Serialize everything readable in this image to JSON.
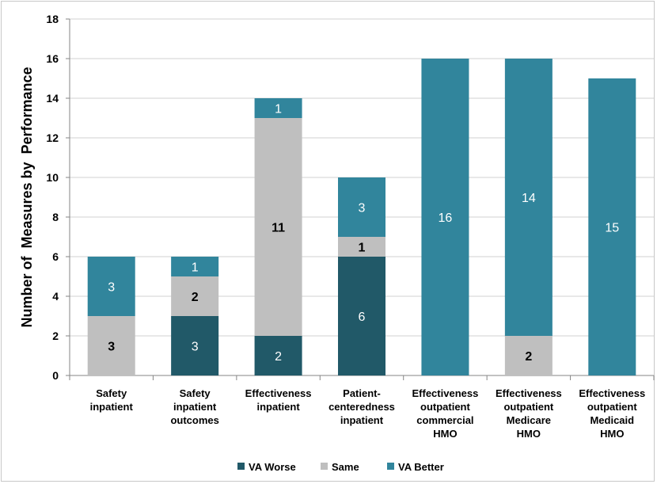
{
  "chart_data": {
    "type": "bar",
    "stacked": true,
    "title": "",
    "xlabel": "",
    "ylabel": "Number of  Measures by  Performance",
    "ylim": [
      0,
      18
    ],
    "yticks": [
      0,
      2,
      4,
      6,
      8,
      10,
      12,
      14,
      16,
      18
    ],
    "grid": true,
    "legend_position": "bottom",
    "categories": [
      [
        "Safety",
        "inpatient"
      ],
      [
        "Safety",
        "inpatient",
        "outcomes"
      ],
      [
        "Effectiveness",
        "inpatient"
      ],
      [
        "Patient-",
        "centeredness",
        "inpatient"
      ],
      [
        "Effectiveness",
        "outpatient",
        "commercial",
        "HMO"
      ],
      [
        "Effectiveness",
        "outpatient",
        "Medicare",
        "HMO"
      ],
      [
        "Effectiveness",
        "outpatient",
        "Medicaid",
        "HMO"
      ]
    ],
    "series": [
      {
        "name": "VA Worse",
        "color": "#215968",
        "label_style": "light",
        "values": [
          0,
          3,
          2,
          6,
          0,
          0,
          0
        ]
      },
      {
        "name": "Same",
        "color": "#bfbfbf",
        "label_style": "dark",
        "values": [
          3,
          2,
          11,
          1,
          0,
          2,
          0
        ]
      },
      {
        "name": "VA Better",
        "color": "#31859c",
        "label_style": "light",
        "values": [
          3,
          1,
          1,
          3,
          16,
          14,
          15
        ]
      }
    ]
  }
}
